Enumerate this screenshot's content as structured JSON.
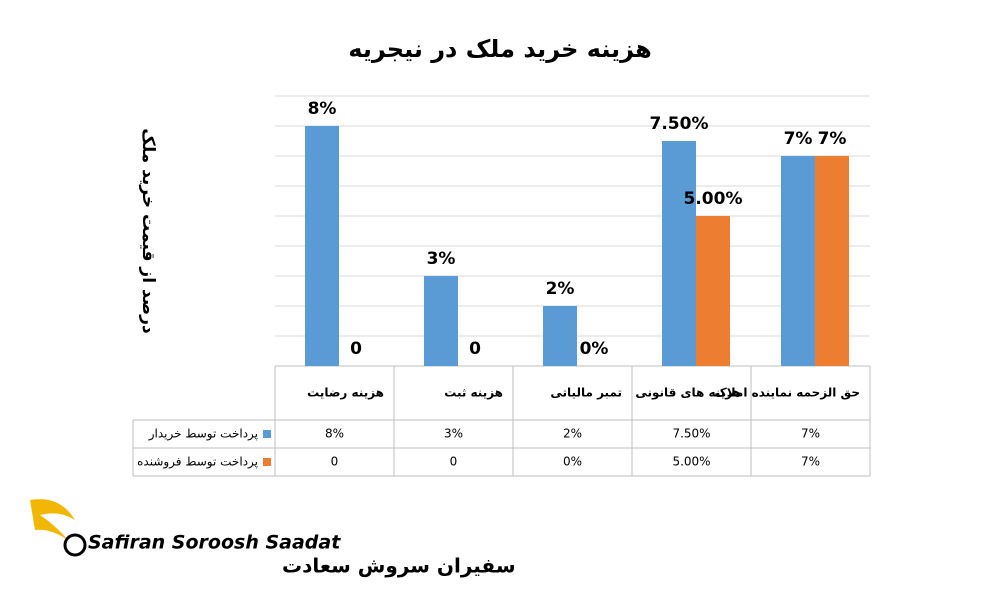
{
  "chart_data": {
    "type": "bar",
    "title": "هزینه خرید ملک در نیجریه",
    "y_label": "درصد از قیمت خرید ملک",
    "categories": [
      "هزینه رضایت",
      "هزینه ثبت",
      "تمبر مالیاتی",
      "هزینه های قانونی",
      "حق الزحمه نماینده املاک"
    ],
    "series": [
      {
        "name": "پرداخت توسط خریدار",
        "color": "#5b9bd5",
        "values": [
          8,
          3,
          2,
          7.5,
          7
        ],
        "value_labels": [
          "8%",
          "3%",
          "2%",
          "7.50%",
          "7%"
        ]
      },
      {
        "name": "پرداخت توسط فروشنده",
        "color": "#ed7d31",
        "values": [
          0,
          0,
          0,
          5,
          7
        ],
        "value_labels": [
          "0",
          "0",
          "0%",
          "5.00%",
          "7%"
        ]
      }
    ],
    "ylim": [
      0,
      9
    ],
    "yticks": [
      0,
      1,
      2,
      3,
      4,
      5,
      6,
      7,
      8,
      9
    ],
    "grid": true
  },
  "logo": {
    "latin": "Safiran Soroosh Saadat",
    "persian": "سفیران سروش سعادت"
  }
}
